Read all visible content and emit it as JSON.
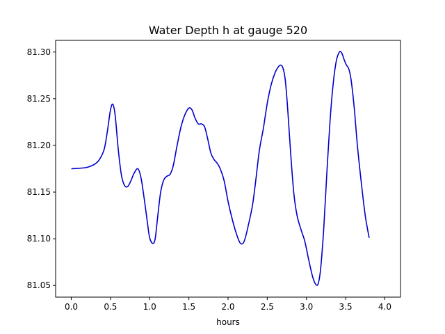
{
  "chart_data": {
    "type": "line",
    "title": "Water Depth h at gauge 520",
    "xlabel": "hours",
    "ylabel": "",
    "xlim": [
      -0.2,
      4.2
    ],
    "ylim": [
      81.0375,
      81.3125
    ],
    "xticks": [
      0.0,
      0.5,
      1.0,
      1.5,
      2.0,
      2.5,
      3.0,
      3.5,
      4.0
    ],
    "xtick_labels": [
      "0.0",
      "0.5",
      "1.0",
      "1.5",
      "2.0",
      "2.5",
      "3.0",
      "3.5",
      "4.0"
    ],
    "yticks": [
      81.05,
      81.1,
      81.15,
      81.2,
      81.25,
      81.3
    ],
    "ytick_labels": [
      "81.05",
      "81.10",
      "81.15",
      "81.20",
      "81.25",
      "81.30"
    ],
    "grid": false,
    "series": [
      {
        "color": "#0000cc",
        "points": [
          [
            0.0,
            81.175
          ],
          [
            0.1,
            81.1755
          ],
          [
            0.2,
            81.1765
          ],
          [
            0.3,
            81.18
          ],
          [
            0.36,
            81.185
          ],
          [
            0.42,
            81.196
          ],
          [
            0.46,
            81.215
          ],
          [
            0.5,
            81.238
          ],
          [
            0.53,
            81.244
          ],
          [
            0.56,
            81.232
          ],
          [
            0.6,
            81.195
          ],
          [
            0.64,
            81.168
          ],
          [
            0.68,
            81.157
          ],
          [
            0.72,
            81.156
          ],
          [
            0.76,
            81.162
          ],
          [
            0.8,
            81.17
          ],
          [
            0.85,
            81.175
          ],
          [
            0.89,
            81.165
          ],
          [
            0.93,
            81.143
          ],
          [
            0.97,
            81.118
          ],
          [
            1.0,
            81.101
          ],
          [
            1.04,
            81.095
          ],
          [
            1.07,
            81.1
          ],
          [
            1.1,
            81.122
          ],
          [
            1.14,
            81.15
          ],
          [
            1.18,
            81.163
          ],
          [
            1.22,
            81.167
          ],
          [
            1.26,
            81.169
          ],
          [
            1.3,
            81.178
          ],
          [
            1.35,
            81.2
          ],
          [
            1.4,
            81.22
          ],
          [
            1.45,
            81.233
          ],
          [
            1.5,
            81.24
          ],
          [
            1.54,
            81.238
          ],
          [
            1.58,
            81.229
          ],
          [
            1.62,
            81.223
          ],
          [
            1.66,
            81.223
          ],
          [
            1.7,
            81.22
          ],
          [
            1.74,
            81.207
          ],
          [
            1.78,
            81.192
          ],
          [
            1.82,
            81.185
          ],
          [
            1.86,
            81.181
          ],
          [
            1.9,
            81.175
          ],
          [
            1.95,
            81.162
          ],
          [
            2.0,
            81.14
          ],
          [
            2.05,
            81.122
          ],
          [
            2.1,
            81.107
          ],
          [
            2.15,
            81.096
          ],
          [
            2.19,
            81.095
          ],
          [
            2.22,
            81.101
          ],
          [
            2.26,
            81.115
          ],
          [
            2.31,
            81.135
          ],
          [
            2.35,
            81.16
          ],
          [
            2.4,
            81.195
          ],
          [
            2.45,
            81.218
          ],
          [
            2.5,
            81.245
          ],
          [
            2.55,
            81.265
          ],
          [
            2.6,
            81.278
          ],
          [
            2.64,
            81.284
          ],
          [
            2.67,
            81.286
          ],
          [
            2.7,
            81.283
          ],
          [
            2.73,
            81.27
          ],
          [
            2.76,
            81.24
          ],
          [
            2.8,
            81.19
          ],
          [
            2.84,
            81.148
          ],
          [
            2.88,
            81.125
          ],
          [
            2.93,
            81.11
          ],
          [
            2.98,
            81.097
          ],
          [
            3.03,
            81.077
          ],
          [
            3.08,
            81.059
          ],
          [
            3.12,
            81.051
          ],
          [
            3.15,
            81.052
          ],
          [
            3.18,
            81.067
          ],
          [
            3.22,
            81.11
          ],
          [
            3.26,
            81.17
          ],
          [
            3.3,
            81.225
          ],
          [
            3.34,
            81.265
          ],
          [
            3.38,
            81.29
          ],
          [
            3.42,
            81.3
          ],
          [
            3.45,
            81.299
          ],
          [
            3.48,
            81.292
          ],
          [
            3.51,
            81.286
          ],
          [
            3.54,
            81.282
          ],
          [
            3.57,
            81.27
          ],
          [
            3.61,
            81.24
          ],
          [
            3.65,
            81.2
          ],
          [
            3.7,
            81.16
          ],
          [
            3.75,
            81.125
          ],
          [
            3.8,
            81.101
          ]
        ]
      }
    ]
  }
}
